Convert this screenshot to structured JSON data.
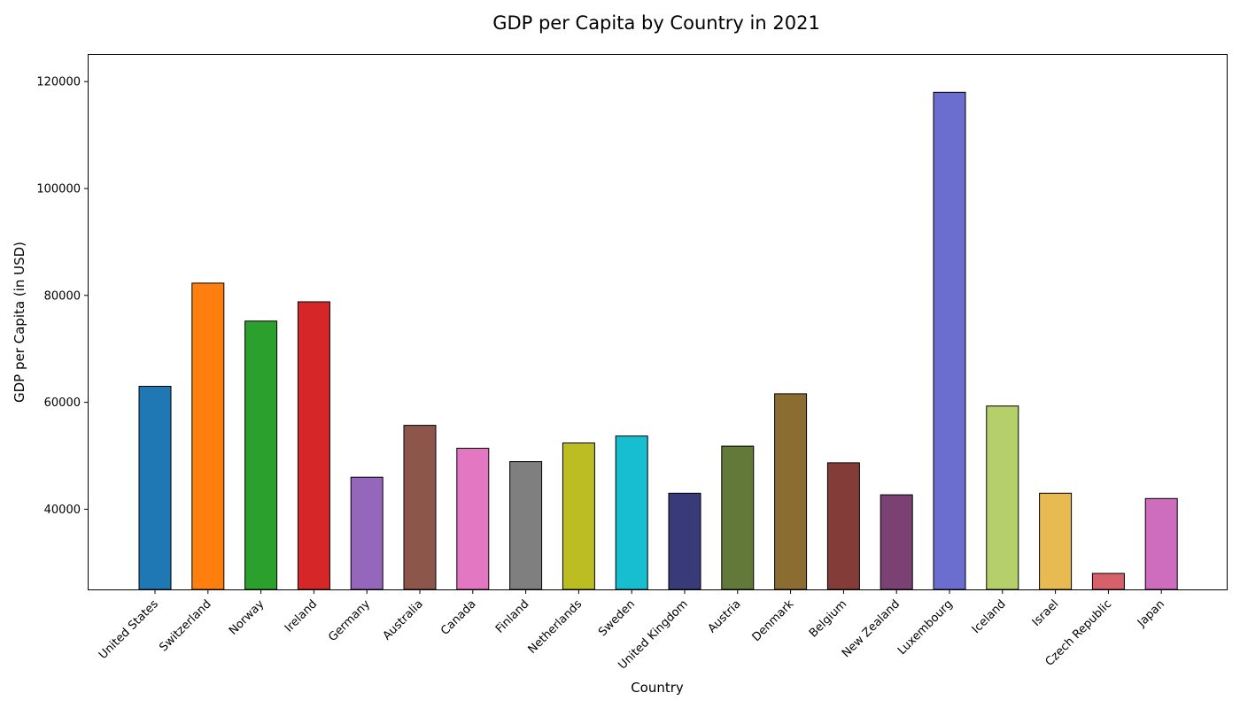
{
  "chart_data": {
    "type": "bar",
    "title": "GDP per Capita by Country in 2021",
    "xlabel": "Country",
    "ylabel": "GDP per Capita (in USD)",
    "ylim": [
      25000,
      125000
    ],
    "yticks": [
      40000,
      60000,
      80000,
      100000,
      120000
    ],
    "grid": false,
    "categories": [
      "United States",
      "Switzerland",
      "Norway",
      "Ireland",
      "Germany",
      "Australia",
      "Canada",
      "Finland",
      "Netherlands",
      "Sweden",
      "United Kingdom",
      "Austria",
      "Denmark",
      "Belgium",
      "New Zealand",
      "Luxembourg",
      "Iceland",
      "Israel",
      "Czech Republic",
      "Japan"
    ],
    "values": [
      63000,
      82300,
      75200,
      78800,
      46000,
      55700,
      51400,
      48900,
      52400,
      53700,
      43000,
      51800,
      61600,
      48700,
      42700,
      118000,
      59300,
      43000,
      28000,
      42000
    ],
    "colors": [
      "#1f77b4",
      "#ff7f0e",
      "#2ca02c",
      "#d62728",
      "#9467bd",
      "#8c564b",
      "#e377c2",
      "#7f7f7f",
      "#bcbd22",
      "#17becf",
      "#393b79",
      "#637939",
      "#8c6d31",
      "#843c39",
      "#7b4173",
      "#6b6ecf",
      "#b5cf6b",
      "#e7ba52",
      "#d6616b",
      "#ce6dbd"
    ]
  }
}
